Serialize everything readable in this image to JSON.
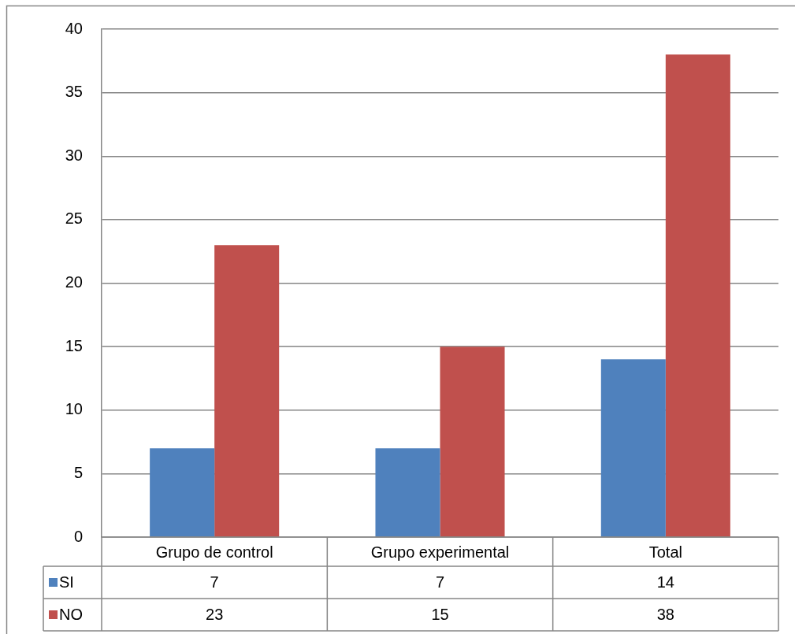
{
  "chart_data": {
    "type": "bar",
    "categories": [
      "Grupo de control",
      "Grupo experimental",
      "Total"
    ],
    "series": [
      {
        "name": "SI",
        "color": "#4f81bd",
        "values": [
          7,
          7,
          14
        ]
      },
      {
        "name": "NO",
        "color": "#c0504d",
        "values": [
          23,
          15,
          38
        ]
      }
    ],
    "ylim": [
      0,
      40
    ],
    "yticks": [
      0,
      5,
      10,
      15,
      20,
      25,
      30,
      35,
      40
    ],
    "grid": "y",
    "legend": "bottom",
    "data_labels": true
  }
}
